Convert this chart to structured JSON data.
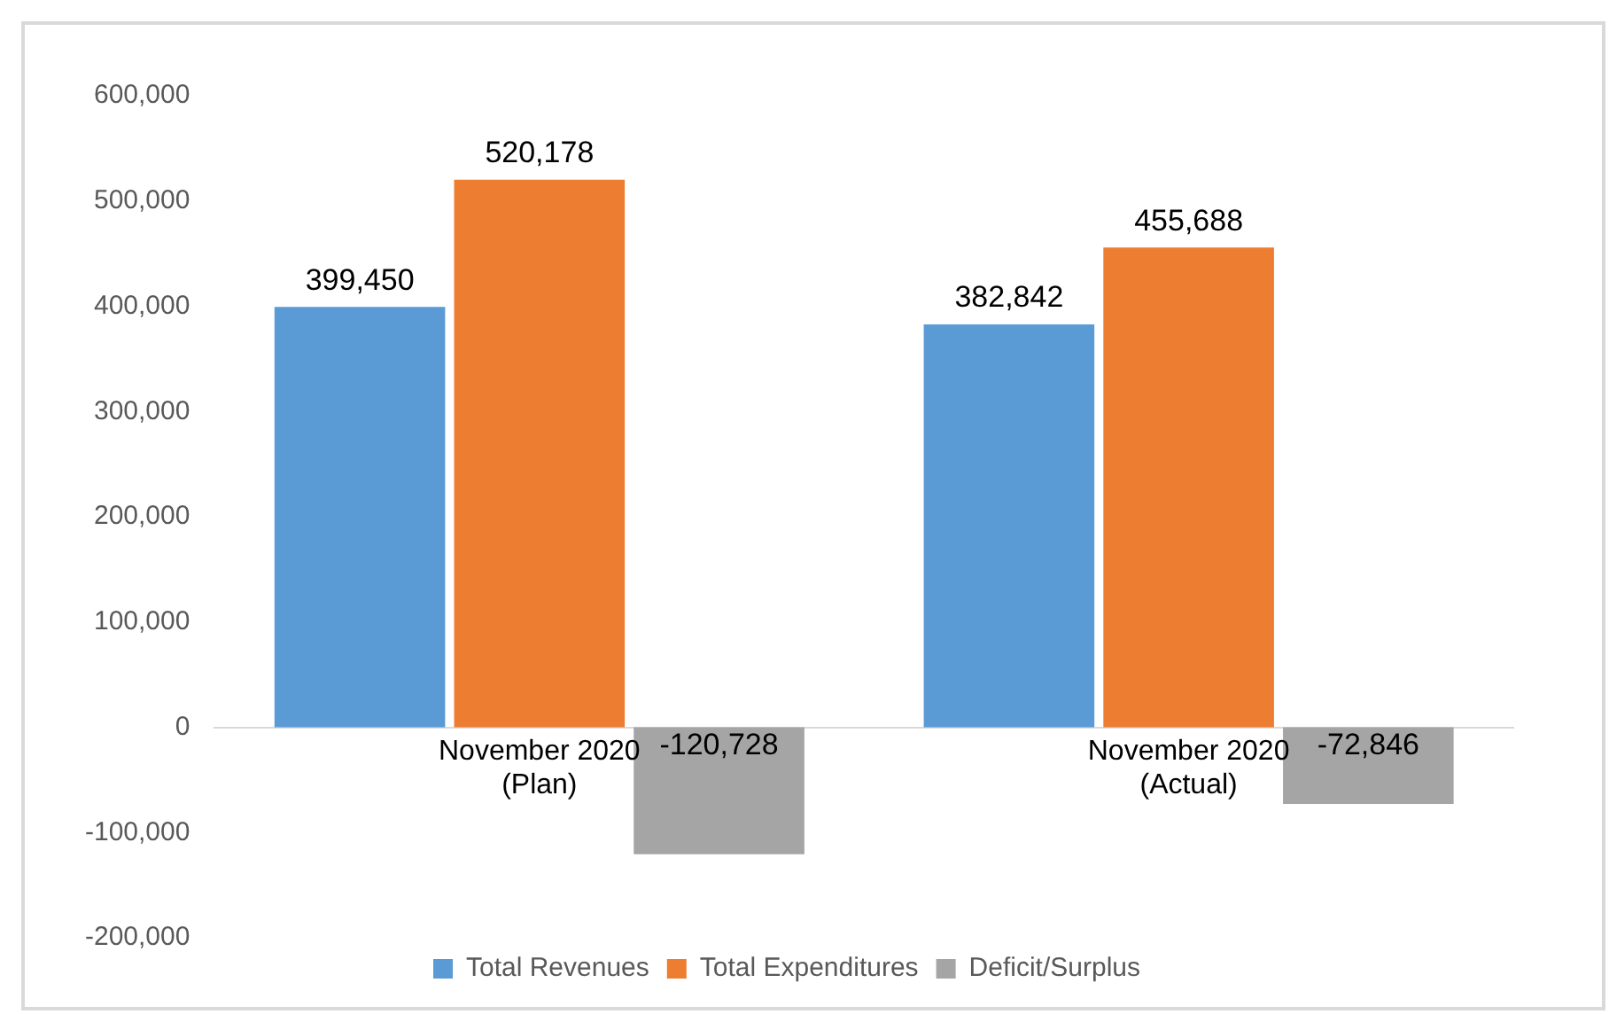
{
  "chart_data": {
    "type": "bar",
    "categories": [
      "November 2020 (Plan)",
      "November 2020 (Actual)"
    ],
    "series": [
      {
        "name": "Total Revenues",
        "color": "#5b9bd5",
        "values": [
          399450,
          382842
        ],
        "value_labels": [
          "399,450",
          "382,842"
        ]
      },
      {
        "name": "Total Expenditures",
        "color": "#ed7d31",
        "values": [
          520178,
          455688
        ],
        "value_labels": [
          "520,178",
          "455,688"
        ]
      },
      {
        "name": "Deficit/Surplus",
        "color": "#a5a5a5",
        "values": [
          -120728,
          -72846
        ],
        "value_labels": [
          "-120,728",
          "-72,846"
        ]
      }
    ],
    "ylim": [
      -200000,
      600000
    ],
    "yticks": [
      {
        "value": -200000,
        "label": "-200,000"
      },
      {
        "value": -100000,
        "label": "-100,000"
      },
      0,
      {
        "value": 100000,
        "label": "100,000"
      },
      {
        "value": 200000,
        "label": "200,000"
      },
      {
        "value": 300000,
        "label": "300,000"
      },
      {
        "value": 400000,
        "label": "400,000"
      },
      {
        "value": 500000,
        "label": "500,000"
      },
      {
        "value": 600000,
        "label": "600,000"
      }
    ],
    "legend": "bottom",
    "grid": false
  }
}
